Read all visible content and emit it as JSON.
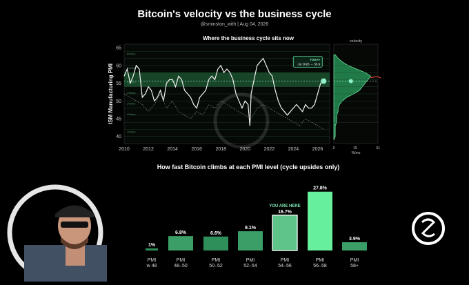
{
  "header": {
    "title": "Bitcoin's velocity vs the business cycle",
    "subtitle": "@sminston_with   |   Aug 04, 2026"
  },
  "chart_data": [
    {
      "type": "line",
      "title": "Where the business cycle sits now",
      "ylabel": "ISM Manufacturing PMI",
      "xlim": [
        2010,
        2027
      ],
      "ylim": [
        38,
        66
      ],
      "xticks": [
        2010,
        2012,
        2014,
        2016,
        2018,
        2020,
        2022,
        2024,
        2026
      ],
      "yticks": [
        40,
        45,
        50,
        55,
        60,
        65
      ],
      "band_labels": [
        "6%/mo",
        "5%/mo",
        "2%/mo",
        "1%/mo",
        "1%/mo",
        "1%/mo",
        "1%/mo"
      ],
      "highlight_band": [
        54,
        58
      ],
      "series": [
        {
          "x": [
            2010.0,
            2010.25,
            2010.5,
            2010.75,
            2011.0,
            2011.25,
            2011.5,
            2011.75,
            2012.0,
            2012.25,
            2012.5,
            2012.75,
            2013.0,
            2013.25,
            2013.5,
            2013.75,
            2014.0,
            2014.25,
            2014.5,
            2014.75,
            2015.0,
            2015.25,
            2015.5,
            2015.75,
            2016.0,
            2016.25,
            2016.5,
            2016.75,
            2017.0,
            2017.25,
            2017.5,
            2017.75,
            2018.0,
            2018.25,
            2018.5,
            2018.75,
            2019.0,
            2019.25,
            2019.5,
            2019.75,
            2020.0,
            2020.25,
            2020.4,
            2020.5,
            2020.75,
            2021.0,
            2021.25,
            2021.5,
            2021.75,
            2022.0,
            2022.25,
            2022.5,
            2022.75,
            2023.0,
            2023.25,
            2023.5,
            2023.75,
            2024.0,
            2024.25,
            2024.5,
            2024.75,
            2025.0,
            2025.25,
            2025.5,
            2025.75,
            2026.0,
            2026.25,
            2026.5
          ],
          "values": [
            57,
            59,
            55,
            57,
            60,
            59,
            51,
            52,
            54,
            53,
            50,
            51,
            53,
            50,
            55,
            56,
            56,
            54,
            57,
            56,
            53,
            52,
            51,
            49,
            48,
            51,
            52,
            53,
            56,
            57,
            56,
            59,
            60,
            58,
            59,
            58,
            56,
            52,
            50,
            48,
            50,
            49,
            43,
            52,
            56,
            60,
            61,
            62,
            60,
            58,
            57,
            53,
            50,
            48,
            47,
            46,
            47,
            48,
            49,
            48,
            47,
            49,
            48,
            48,
            49,
            52,
            55,
            55.6
          ]
        },
        {
          "x": [
            2010.0,
            2010.5,
            2011.0,
            2011.5,
            2012.0,
            2012.5,
            2013.0,
            2013.5,
            2014.0,
            2014.5,
            2015.0,
            2015.5,
            2016.0,
            2016.5,
            2017.0,
            2017.5,
            2018.0,
            2018.5,
            2019.0,
            2019.5,
            2020.0,
            2020.5,
            2021.0,
            2021.5,
            2022.0,
            2022.5,
            2023.0,
            2023.5,
            2024.0,
            2024.5,
            2025.0,
            2025.5,
            2026.0,
            2026.5
          ],
          "values": [
            52,
            51,
            50,
            49,
            47,
            49,
            52,
            48,
            50,
            47,
            46,
            45,
            47,
            46,
            49,
            48,
            50,
            49,
            48,
            47,
            46,
            45,
            48,
            49,
            48,
            47,
            46,
            45,
            44,
            43,
            45,
            44,
            43,
            42
          ]
        }
      ],
      "annotation": {
        "label": "TODAY",
        "value_text": "Jul 2026 → 55.6",
        "x": 2026.5,
        "y": 55.6
      }
    },
    {
      "type": "area",
      "title": "velocity",
      "xlabel": "%/mo",
      "xlim": [
        0,
        31
      ],
      "xticks": [
        0,
        15,
        31
      ],
      "y": [
        39,
        40,
        41,
        42,
        43,
        44,
        45,
        46,
        47,
        48,
        49,
        50,
        51,
        52,
        53,
        54,
        55,
        56,
        57,
        58,
        59,
        60,
        61,
        62,
        63
      ],
      "values": [
        0,
        1,
        1,
        1,
        1,
        2,
        2,
        2,
        3,
        3,
        4,
        6,
        9,
        14,
        18,
        20,
        22,
        24,
        26,
        22,
        16,
        10,
        6,
        3,
        1
      ],
      "marker_value": 12
    },
    {
      "type": "bar",
      "title": "How fast Bitcoin climbs at each PMI level  (cycle upsides only)",
      "categories": [
        [
          "PMI",
          "w 48"
        ],
        [
          "PMI",
          "48–50"
        ],
        [
          "PMI",
          "50–52"
        ],
        [
          "PMI",
          "52–54"
        ],
        [
          "PMI",
          "54–56"
        ],
        [
          "PMI",
          "56–58"
        ],
        [
          "PMI",
          "58+"
        ]
      ],
      "values": [
        1,
        6.8,
        6.6,
        9.1,
        16.7,
        27.8,
        3.9
      ],
      "value_labels": [
        "1%",
        "6.8%",
        "6.6%",
        "9.1%",
        "16.7%",
        "27.8%",
        "3.9%"
      ],
      "ylim": [
        0,
        30
      ],
      "highlight_index": 4,
      "highlight_label": "YOU ARE HERE"
    }
  ]
}
